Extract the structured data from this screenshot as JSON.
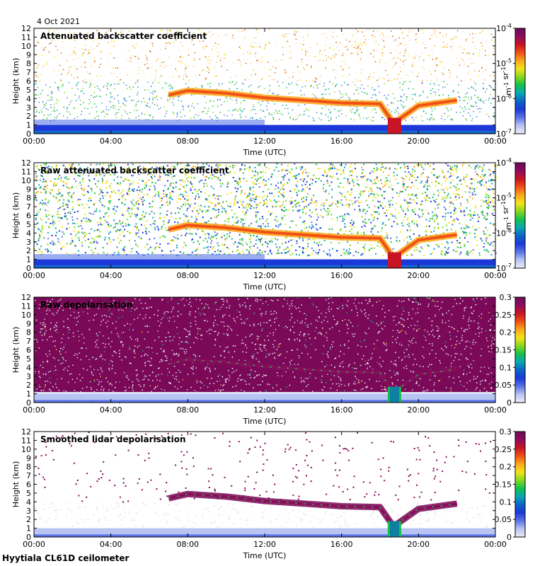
{
  "date_label": "4 Oct 2021",
  "footer": "Hyytiala CL61D ceilometer",
  "colors": {
    "rainbow": [
      "#ececf8",
      "#b8c4f2",
      "#5a74e8",
      "#1c38d8",
      "#0a64c8",
      "#0aa8b4",
      "#16c04a",
      "#86d81e",
      "#f4e41a",
      "#fca81a",
      "#f05014",
      "#c81424",
      "#8c0c5c",
      "#6e0a5a"
    ]
  },
  "chart_data": [
    {
      "type": "heatmap",
      "title": "Attenuated backscatter coefficient",
      "xlabel": "Time (UTC)",
      "ylabel": "Height (km)",
      "x_ticks": [
        "00:00",
        "04:00",
        "08:00",
        "12:00",
        "16:00",
        "20:00",
        "00:00"
      ],
      "y_ticks": [
        "0",
        "1",
        "2",
        "3",
        "4",
        "5",
        "6",
        "7",
        "8",
        "9",
        "10",
        "11",
        "12"
      ],
      "ylim": [
        0,
        12
      ],
      "colorbar": {
        "scale": "log",
        "ticks": [
          "10^-7",
          "10^-6",
          "10^-5",
          "10^-4"
        ],
        "unit": "m^-1 sr^-1"
      },
      "cloud_layer": [
        {
          "t": 7.0,
          "h": 4.4
        },
        {
          "t": 8.0,
          "h": 4.9
        },
        {
          "t": 10.0,
          "h": 4.6
        },
        {
          "t": 12.0,
          "h": 4.1
        },
        {
          "t": 14.0,
          "h": 3.8
        },
        {
          "t": 16.0,
          "h": 3.5
        },
        {
          "t": 18.0,
          "h": 3.4
        },
        {
          "t": 18.7,
          "h": 1.2
        },
        {
          "t": 20.0,
          "h": 3.2
        },
        {
          "t": 22.0,
          "h": 3.8
        }
      ]
    },
    {
      "type": "heatmap",
      "title": "Raw attenuated backscatter coefficient",
      "xlabel": "Time (UTC)",
      "ylabel": "Height (km)",
      "x_ticks": [
        "00:00",
        "04:00",
        "08:00",
        "12:00",
        "16:00",
        "20:00",
        "00:00"
      ],
      "y_ticks": [
        "0",
        "1",
        "2",
        "3",
        "4",
        "5",
        "6",
        "7",
        "8",
        "9",
        "10",
        "11",
        "12"
      ],
      "ylim": [
        0,
        12
      ],
      "colorbar": {
        "scale": "log",
        "ticks": [
          "10^-7",
          "10^-6",
          "10^-5",
          "10^-4"
        ],
        "unit": "m^-1 sr^-1"
      }
    },
    {
      "type": "heatmap",
      "title": "Raw depolarisation",
      "xlabel": "Time (UTC)",
      "ylabel": "Height (km)",
      "x_ticks": [
        "00:00",
        "04:00",
        "08:00",
        "12:00",
        "16:00",
        "20:00",
        "00:00"
      ],
      "y_ticks": [
        "0",
        "1",
        "2",
        "3",
        "4",
        "5",
        "6",
        "7",
        "8",
        "9",
        "10",
        "11",
        "12"
      ],
      "ylim": [
        0,
        12
      ],
      "colorbar": {
        "scale": "linear",
        "ticks": [
          "0",
          "0.05",
          "0.1",
          "0.15",
          "0.2",
          "0.25",
          "0.3"
        ],
        "range": [
          0,
          0.3
        ]
      }
    },
    {
      "type": "heatmap",
      "title": "Smoothed lidar depolarisation",
      "xlabel": "Time (UTC)",
      "ylabel": "Height (km)",
      "x_ticks": [
        "00:00",
        "04:00",
        "08:00",
        "12:00",
        "16:00",
        "20:00",
        "00:00"
      ],
      "y_ticks": [
        "0",
        "1",
        "2",
        "3",
        "4",
        "5",
        "6",
        "7",
        "8",
        "9",
        "10",
        "11",
        "12"
      ],
      "ylim": [
        0,
        12
      ],
      "colorbar": {
        "scale": "linear",
        "ticks": [
          "0",
          "0.05",
          "0.1",
          "0.15",
          "0.2",
          "0.25",
          "0.3"
        ],
        "range": [
          0,
          0.3
        ]
      }
    }
  ]
}
